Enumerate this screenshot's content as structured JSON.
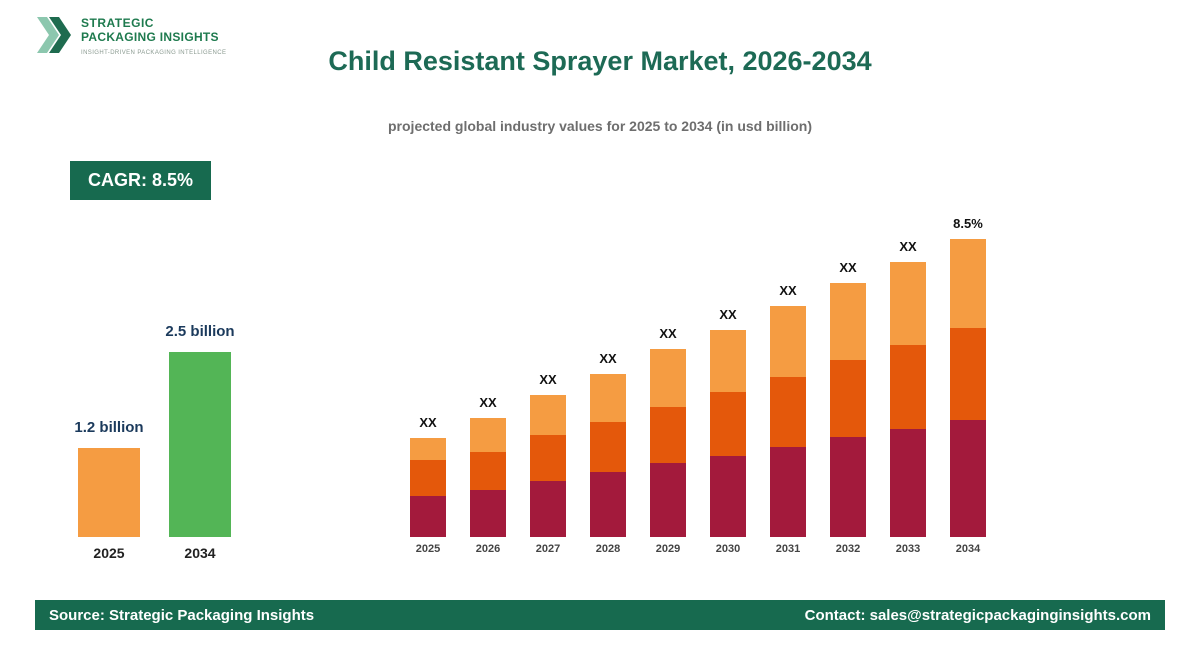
{
  "brand": {
    "name_line1": "STRATEGIC",
    "name_line2": "PACKAGING INSIGHTS",
    "tagline": "INSIGHT-DRIVEN PACKAGING INTELLIGENCE",
    "accent_light": "#8cc7ae",
    "accent_dark": "#1e6b4f"
  },
  "header": {
    "title": "Child Resistant Sprayer Market, 2026-2034",
    "subtitle": "projected global industry values for 2025 to 2034 (in usd billion)"
  },
  "cagr_badge": "CAGR: 8.5%",
  "footer": {
    "source": "Source: Strategic Packaging Insights",
    "contact": "Contact: sales@strategicpackaginginsights.com"
  },
  "chart_data": [
    {
      "type": "bar",
      "title": "Market size 2025 vs 2034",
      "unit": "usd billion",
      "categories": [
        "2025",
        "2034"
      ],
      "values": [
        1.2,
        2.5
      ],
      "value_labels": [
        "1.2 billion",
        "2.5 billion"
      ],
      "bar_colors": [
        "#f59c42",
        "#53b556"
      ],
      "legend": false,
      "axes": false
    },
    {
      "type": "bar",
      "stacked": true,
      "title": "Projected global industry values 2025-2034",
      "unit": "usd billion",
      "categories": [
        "2025",
        "2026",
        "2027",
        "2028",
        "2029",
        "2030",
        "2031",
        "2032",
        "2033",
        "2034"
      ],
      "series": [
        {
          "name": "segment-bottom",
          "color": "#a31a3c",
          "values": [
            41,
            47,
            56,
            65,
            74,
            81,
            90,
            100,
            108,
            117
          ]
        },
        {
          "name": "segment-middle",
          "color": "#e4580b",
          "values": [
            36,
            38,
            46,
            50,
            56,
            64,
            70,
            77,
            84,
            92
          ]
        },
        {
          "name": "segment-top",
          "color": "#f59c42",
          "values": [
            22,
            34,
            40,
            48,
            58,
            62,
            71,
            77,
            83,
            89
          ]
        }
      ],
      "bar_labels": [
        "XX",
        "XX",
        "XX",
        "XX",
        "XX",
        "XX",
        "XX",
        "XX",
        "XX",
        "8.5%"
      ],
      "legend": false,
      "axes": false
    }
  ]
}
